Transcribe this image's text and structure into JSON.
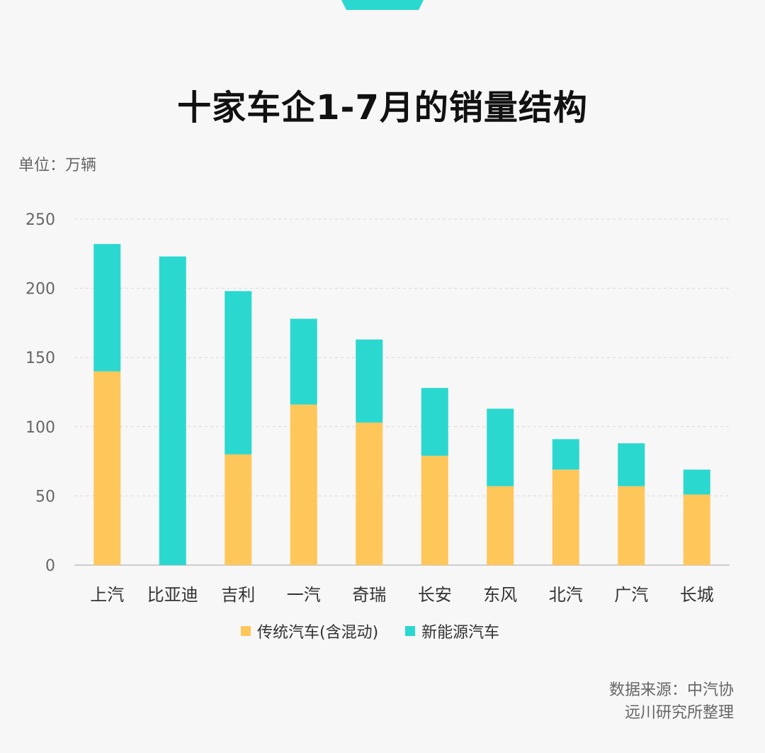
{
  "header": {
    "title": "十家车企1-7月的销量结构",
    "unit": "单位：万辆"
  },
  "footer": {
    "source_line1": "数据来源：中汽协",
    "source_line2": "远川研究所整理"
  },
  "colors": {
    "traditional": "#ffc65a",
    "nev": "#2ad8cf",
    "grid": "#d8d8d8",
    "axis": "#bfbfbf"
  },
  "chart_data": {
    "type": "bar",
    "stacked": true,
    "title": "十家车企1-7月的销量结构",
    "ylabel": "单位：万辆",
    "ylim": [
      0,
      250
    ],
    "yticks": [
      0,
      50,
      100,
      150,
      200,
      250
    ],
    "grid": true,
    "legend_position": "bottom",
    "categories": [
      "上汽",
      "比亚迪",
      "吉利",
      "一汽",
      "奇瑞",
      "长安",
      "东风",
      "北汽",
      "广汽",
      "长城"
    ],
    "series": [
      {
        "name": "传统汽车(含混动)",
        "color": "#ffc65a",
        "values": [
          140,
          0,
          80,
          116,
          103,
          79,
          57,
          69,
          57,
          51
        ]
      },
      {
        "name": "新能源汽车",
        "color": "#2ad8cf",
        "values": [
          92,
          223,
          118,
          62,
          60,
          49,
          56,
          22,
          31,
          18
        ]
      }
    ]
  }
}
